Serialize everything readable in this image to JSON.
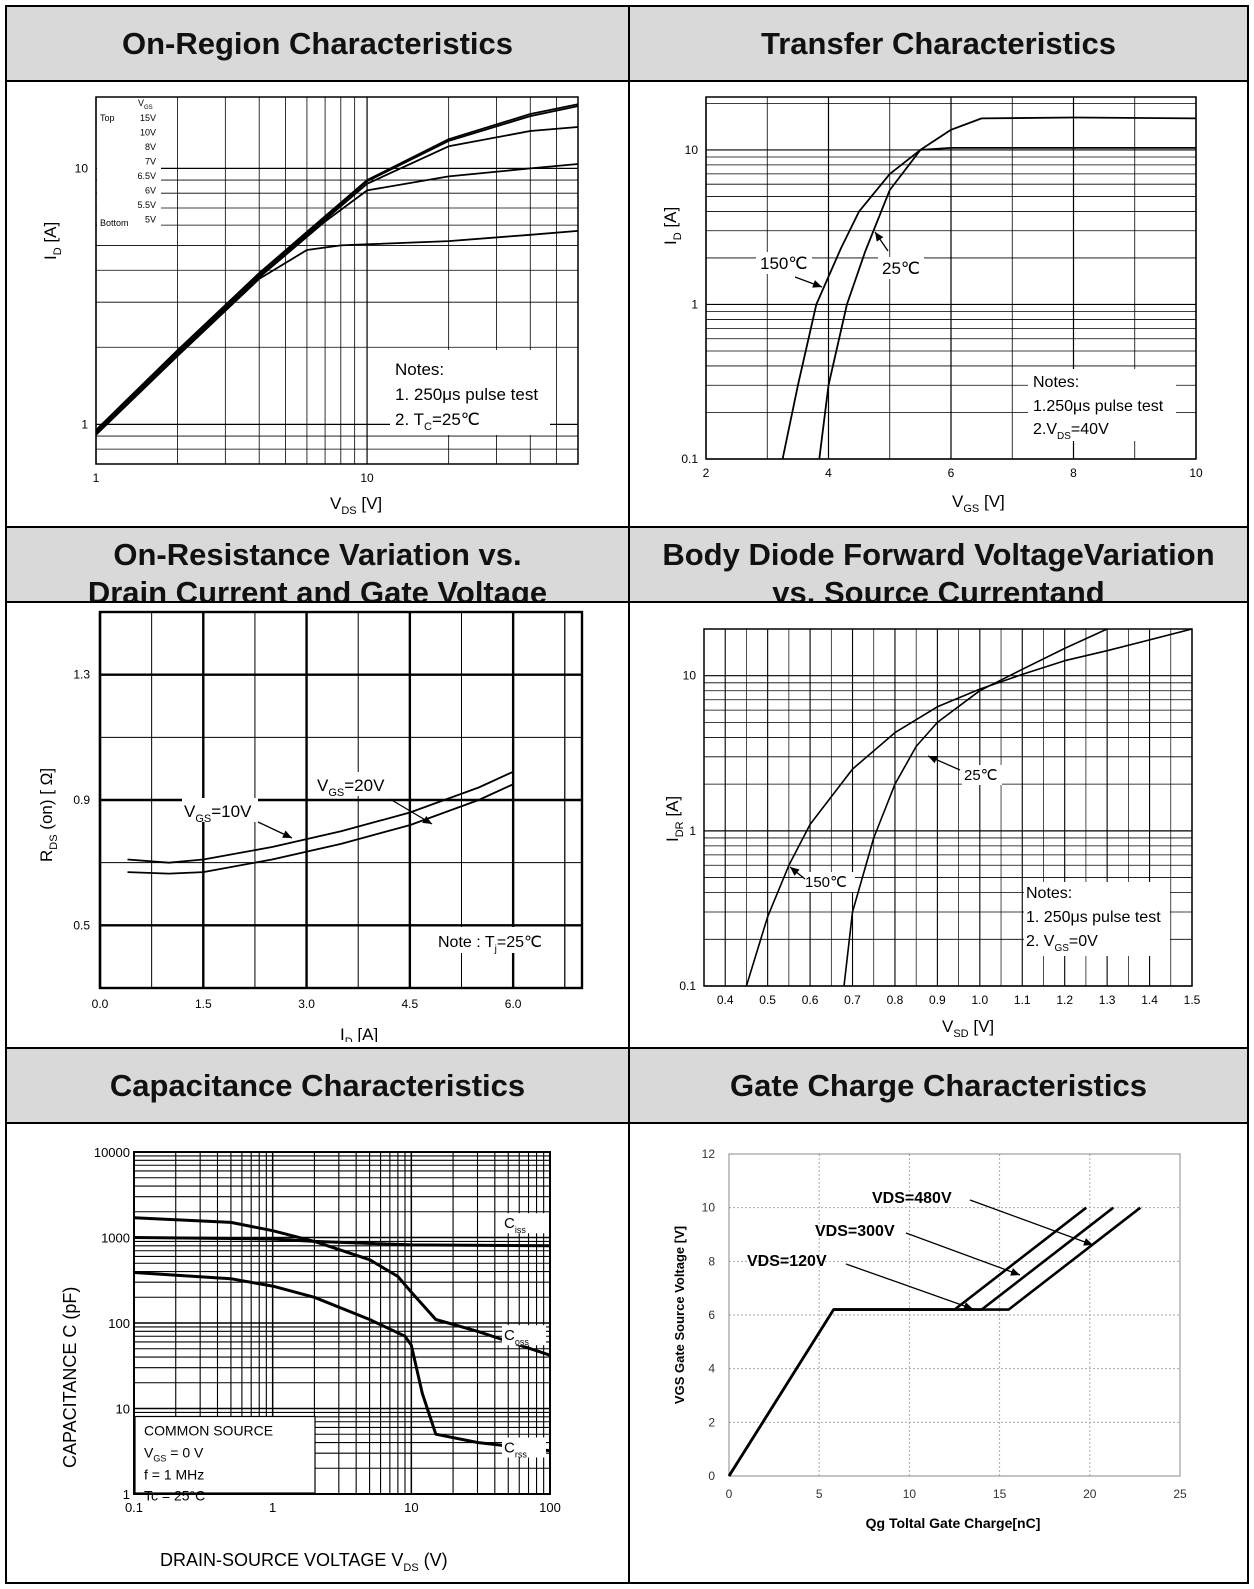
{
  "headers": {
    "onregion": "On-Region Characteristics",
    "transfer": "Transfer Characteristics",
    "onres_1": "On-Resistance Variation vs.",
    "onres_2": "Drain Current and Gate Voltage",
    "diode_1": "Body Diode Forward VoltageVariation",
    "diode_2": "vs. Source Currentand",
    "capacitance": "Capacitance Characteristics",
    "gatecharge": "Gate Charge Characteristics"
  },
  "chart_data": [
    {
      "id": "onregion",
      "type": "line",
      "xscale": "log",
      "yscale": "log",
      "xlim": [
        1,
        60
      ],
      "ylim": [
        0.7,
        19
      ],
      "xticks": [
        1,
        10
      ],
      "yticks": [
        1,
        10
      ],
      "xlabel": "V",
      "xlabel_sub": "DS",
      "xlabel_unit": "[V]",
      "ylabel": "I",
      "ylabel_sub": "D",
      "ylabel_unit": "[A]",
      "legend_title": "V",
      "legend_title_sub": "GS",
      "legend_top": "Top",
      "legend_bottom": "Bottom",
      "legend_levels": [
        "15V",
        "10V",
        "8V",
        "7V",
        "6.5V",
        "6V",
        "5.5V",
        "5V"
      ],
      "notes": [
        "Notes:",
        "1. 250μs pulse test",
        "2. T",
        "C",
        "=25℃"
      ],
      "series": [
        {
          "name": "15V",
          "x": [
            1,
            2,
            4,
            7,
            10,
            20,
            40,
            60
          ],
          "y": [
            0.95,
            1.95,
            3.9,
            6.5,
            9.0,
            13.0,
            16.3,
            17.8
          ]
        },
        {
          "name": "10V",
          "x": [
            1,
            2,
            4,
            7,
            10,
            20,
            40,
            60
          ],
          "y": [
            0.94,
            1.93,
            3.85,
            6.4,
            8.9,
            12.8,
            16.0,
            17.5
          ]
        },
        {
          "name": "8V",
          "x": [
            1,
            2,
            4,
            7,
            10,
            20,
            40,
            60
          ],
          "y": [
            0.93,
            1.9,
            3.8,
            6.3,
            8.7,
            12.2,
            14.0,
            14.5
          ]
        },
        {
          "name": "7V",
          "x": [
            1,
            2,
            4,
            7,
            10,
            20,
            40,
            60
          ],
          "y": [
            0.92,
            1.88,
            3.75,
            6.2,
            8.2,
            9.3,
            10.0,
            10.4
          ]
        },
        {
          "name": "5V",
          "x": [
            1,
            2,
            4,
            6,
            8,
            10,
            20,
            40,
            60
          ],
          "y": [
            0.91,
            1.85,
            3.7,
            4.8,
            5.0,
            5.05,
            5.2,
            5.5,
            5.7
          ]
        }
      ]
    },
    {
      "id": "transfer",
      "type": "line",
      "xscale": "linear",
      "yscale": "log",
      "xlim": [
        2,
        10
      ],
      "ylim": [
        0.1,
        22
      ],
      "xticks": [
        2,
        4,
        6,
        8,
        10
      ],
      "yticks": [
        0.1,
        1,
        10
      ],
      "xlabel": "V",
      "xlabel_sub": "GS",
      "xlabel_unit": "[V]",
      "ylabel": "I",
      "ylabel_sub": "D",
      "ylabel_unit": "[A]",
      "annotations": [
        "150℃",
        "25℃"
      ],
      "notes": [
        "Notes:",
        "1.250μs pulse test",
        "2.V",
        "DS",
        "=40V"
      ],
      "series": [
        {
          "name": "150℃",
          "x": [
            3.25,
            3.5,
            3.8,
            4.2,
            4.5,
            5.0,
            5.5,
            6.0,
            6.5,
            8,
            10
          ],
          "y": [
            0.1,
            0.3,
            1.0,
            2.3,
            4.0,
            7.0,
            10.0,
            13.5,
            16.0,
            16.2,
            16.0
          ]
        },
        {
          "name": "25℃",
          "x": [
            3.85,
            4.0,
            4.3,
            4.6,
            5.0,
            5.5,
            6.0,
            8,
            10
          ],
          "y": [
            0.1,
            0.3,
            1.0,
            2.2,
            5.5,
            10.0,
            10.3,
            10.3,
            10.3
          ]
        }
      ]
    },
    {
      "id": "onresistance",
      "type": "line",
      "xscale": "linear",
      "yscale": "linear",
      "xlim": [
        0,
        7
      ],
      "ylim": [
        0.3,
        1.5
      ],
      "xticks": [
        0.0,
        1.5,
        3.0,
        4.5,
        6.0
      ],
      "yticks": [
        0.5,
        0.9,
        1.3
      ],
      "xtick_labels": [
        "0.0",
        "1.5",
        "3.0",
        "4.5",
        "6.0"
      ],
      "ytick_labels": [
        "0.5",
        "0.9",
        "1.3"
      ],
      "xlabel": "I",
      "xlabel_sub": "D",
      "xlabel_unit": "[A]",
      "ylabel": "R",
      "ylabel_sub": "DS",
      "ylabel_unit": " (on) [ Ω]",
      "label_vgs10": [
        "V",
        "GS",
        "=10V"
      ],
      "label_vgs20": [
        "V",
        "GS",
        "=20V"
      ],
      "note": [
        "Note : T",
        "j",
        "=25℃"
      ],
      "series": [
        {
          "name": "V_GS=10V",
          "x": [
            0.4,
            1.0,
            1.5,
            2.5,
            3.5,
            4.5,
            5.5,
            6.0
          ],
          "y": [
            0.71,
            0.7,
            0.71,
            0.75,
            0.8,
            0.86,
            0.94,
            0.99
          ]
        },
        {
          "name": "V_GS=20V",
          "x": [
            0.4,
            1.0,
            1.5,
            2.5,
            3.5,
            4.5,
            5.5,
            6.0
          ],
          "y": [
            0.67,
            0.665,
            0.67,
            0.71,
            0.76,
            0.82,
            0.9,
            0.95
          ]
        }
      ]
    },
    {
      "id": "bodydiode",
      "type": "line",
      "xscale": "linear",
      "yscale": "log",
      "xlim": [
        0.35,
        1.5
      ],
      "ylim": [
        0.1,
        20
      ],
      "xticks": [
        0.4,
        0.5,
        0.6,
        0.7,
        0.8,
        0.9,
        1.0,
        1.1,
        1.2,
        1.3,
        1.4,
        1.5
      ],
      "xtick_labels": [
        "0.4",
        "0.5",
        "0.6",
        "0.7",
        "0.8",
        "0.9",
        "1.0",
        "1.1",
        "1.2",
        "1.3",
        "1.4",
        "1.5"
      ],
      "yticks": [
        0.1,
        1,
        10
      ],
      "xlabel": "V",
      "xlabel_sub": "SD",
      "xlabel_unit": "[V]",
      "ylabel": "I",
      "ylabel_sub": "DR",
      "ylabel_unit": "[A]",
      "annotations": [
        "25℃",
        "150℃"
      ],
      "notes": [
        "Notes:",
        "1. 250μs pulse test",
        "2. V",
        "GS",
        "=0V"
      ],
      "series": [
        {
          "name": "150℃",
          "x": [
            0.45,
            0.5,
            0.55,
            0.6,
            0.7,
            0.8,
            0.9,
            1.0,
            1.1,
            1.2,
            1.3,
            1.5
          ],
          "y": [
            0.1,
            0.28,
            0.6,
            1.1,
            2.5,
            4.3,
            6.3,
            8.2,
            10.2,
            12.5,
            14.5,
            20
          ]
        },
        {
          "name": "25℃",
          "x": [
            0.68,
            0.7,
            0.75,
            0.8,
            0.85,
            0.9,
            1.0,
            1.1,
            1.2,
            1.3
          ],
          "y": [
            0.1,
            0.3,
            0.9,
            2.0,
            3.5,
            5.0,
            8.0,
            11.0,
            15.0,
            20
          ]
        }
      ]
    },
    {
      "id": "capacitance",
      "type": "line",
      "xscale": "log",
      "yscale": "log",
      "xlim": [
        0.1,
        100
      ],
      "ylim": [
        1,
        10000
      ],
      "xticks": [
        0.1,
        1,
        10,
        100
      ],
      "yticks": [
        1,
        10,
        100,
        1000,
        10000
      ],
      "xtick_labels": [
        "0.1",
        "1",
        "10",
        "100"
      ],
      "ytick_labels": [
        "1",
        "10",
        "100",
        "1000",
        "10000"
      ],
      "xlabel": "DRAIN-SOURCE VOLTAGE   V",
      "xlabel_sub": "DS",
      "xlabel_unit": "(V)",
      "ylabel": "CAPACITANCE   C   (pF)",
      "legend_box": [
        "COMMON SOURCE",
        "V",
        "GS",
        " = 0 V",
        "f = 1 MHz",
        "Tc = 25°C"
      ],
      "curve_labels": [
        [
          "C",
          "iss"
        ],
        [
          "C",
          "oss"
        ],
        [
          "C",
          "rss"
        ]
      ],
      "series": [
        {
          "name": "Ciss",
          "x": [
            0.1,
            1,
            2,
            10,
            100
          ],
          "y": [
            1000,
            960,
            900,
            820,
            800
          ]
        },
        {
          "name": "Coss",
          "x": [
            0.1,
            0.5,
            1,
            2,
            5,
            8,
            10,
            15,
            30,
            100
          ],
          "y": [
            1700,
            1500,
            1200,
            900,
            550,
            350,
            230,
            110,
            80,
            42
          ]
        },
        {
          "name": "Crss",
          "x": [
            0.1,
            0.5,
            1,
            2,
            5,
            9,
            10,
            12,
            15,
            30,
            100
          ],
          "y": [
            390,
            330,
            270,
            200,
            110,
            70,
            55,
            15,
            5,
            4,
            3.2
          ]
        }
      ]
    },
    {
      "id": "gatecharge",
      "type": "line",
      "xscale": "linear",
      "yscale": "linear",
      "xlim": [
        0,
        25
      ],
      "ylim": [
        0,
        12
      ],
      "xticks": [
        0,
        5,
        10,
        15,
        20,
        25
      ],
      "yticks": [
        0,
        2,
        4,
        6,
        8,
        10,
        12
      ],
      "xlabel": "Qg Toltal Gate Charge[nC]",
      "ylabel": "VGS Gate Source Voltage [V]",
      "annotations": [
        "VDS=480V",
        "VDS=300V",
        "VDS=120V"
      ],
      "series": [
        {
          "name": "VDS=120V",
          "x": [
            0,
            5.8,
            12.5,
            19.8
          ],
          "y": [
            0,
            6.2,
            6.2,
            10
          ]
        },
        {
          "name": "VDS=300V",
          "x": [
            0,
            5.8,
            14.0,
            21.3
          ],
          "y": [
            0,
            6.2,
            6.2,
            10
          ]
        },
        {
          "name": "VDS=480V",
          "x": [
            0,
            5.8,
            15.5,
            22.8
          ],
          "y": [
            0,
            6.2,
            6.2,
            10
          ]
        }
      ]
    }
  ]
}
